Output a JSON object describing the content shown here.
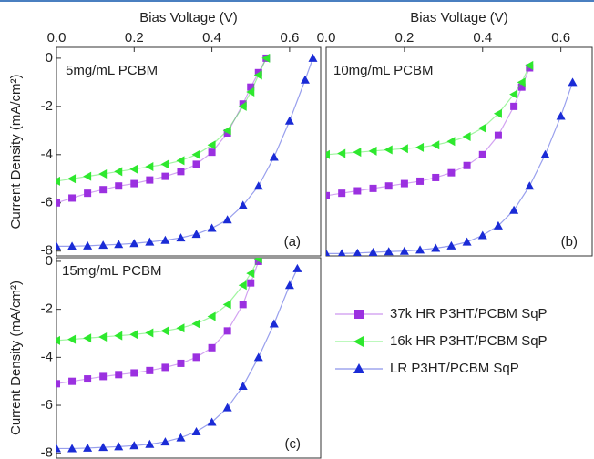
{
  "chart_data": [
    {
      "type": "line",
      "xlabel": "Bias Voltage (V)",
      "ylabel": "Current Density (mA/cm²)",
      "annotations": [
        "5mg/mL PCBM",
        "(a)"
      ],
      "xlim": [
        0,
        0.68
      ],
      "ylim": [
        -8.2,
        0.45
      ],
      "xticks": [
        {
          "value": 0,
          "label": "0.0"
        },
        0.2,
        0.4,
        0.6
      ],
      "yticks": [
        0,
        -2,
        -4,
        -6,
        -8
      ],
      "series": [
        {
          "color": "#9b30e0",
          "marker": "square",
          "x": [
            0,
            0.04,
            0.08,
            0.12,
            0.16,
            0.2,
            0.24,
            0.28,
            0.32,
            0.36,
            0.4,
            0.44,
            0.48,
            0.5,
            0.52,
            0.54
          ],
          "values": [
            -6.0,
            -5.8,
            -5.6,
            -5.45,
            -5.3,
            -5.2,
            -5.05,
            -4.9,
            -4.7,
            -4.4,
            -3.9,
            -3.1,
            -1.9,
            -1.2,
            -0.6,
            0
          ]
        },
        {
          "color": "#2ee82e",
          "marker": "triangle-left",
          "x": [
            0,
            0.04,
            0.08,
            0.12,
            0.16,
            0.2,
            0.24,
            0.28,
            0.32,
            0.36,
            0.4,
            0.44,
            0.48,
            0.5,
            0.52,
            0.54
          ],
          "values": [
            -5.1,
            -5.0,
            -4.9,
            -4.8,
            -4.7,
            -4.6,
            -4.5,
            -4.4,
            -4.25,
            -4.0,
            -3.6,
            -3.0,
            -2.0,
            -1.4,
            -0.7,
            0
          ]
        },
        {
          "color": "#1a2bd6",
          "marker": "triangle-up",
          "x": [
            0,
            0.04,
            0.08,
            0.12,
            0.16,
            0.2,
            0.24,
            0.28,
            0.32,
            0.36,
            0.4,
            0.44,
            0.48,
            0.52,
            0.56,
            0.6,
            0.64,
            0.66
          ],
          "values": [
            -7.8,
            -7.8,
            -7.78,
            -7.75,
            -7.72,
            -7.68,
            -7.62,
            -7.55,
            -7.45,
            -7.3,
            -7.05,
            -6.7,
            -6.1,
            -5.3,
            -4.1,
            -2.6,
            -0.9,
            0
          ]
        }
      ]
    },
    {
      "type": "line",
      "xlabel": "Bias Voltage (V)",
      "annotations": [
        "10mg/mL PCBM",
        "(b)"
      ],
      "xlim": [
        0,
        0.68
      ],
      "ylim": [
        -8.2,
        0.45
      ],
      "xticks": [
        {
          "value": 0,
          "label": "0.0"
        },
        0.2,
        0.4,
        0.6
      ],
      "series": [
        {
          "color": "#9b30e0",
          "marker": "square",
          "x": [
            0,
            0.04,
            0.08,
            0.12,
            0.16,
            0.2,
            0.24,
            0.28,
            0.32,
            0.36,
            0.4,
            0.44,
            0.48,
            0.5,
            0.52
          ],
          "values": [
            -5.7,
            -5.6,
            -5.5,
            -5.4,
            -5.3,
            -5.2,
            -5.1,
            -4.95,
            -4.75,
            -4.45,
            -4.0,
            -3.2,
            -2.0,
            -1.2,
            -0.4
          ]
        },
        {
          "color": "#2ee82e",
          "marker": "triangle-left",
          "x": [
            0,
            0.04,
            0.08,
            0.12,
            0.16,
            0.2,
            0.24,
            0.28,
            0.32,
            0.36,
            0.4,
            0.44,
            0.48,
            0.5,
            0.52
          ],
          "values": [
            -4.0,
            -3.95,
            -3.9,
            -3.85,
            -3.8,
            -3.75,
            -3.7,
            -3.6,
            -3.45,
            -3.25,
            -2.9,
            -2.3,
            -1.5,
            -1.0,
            -0.3
          ]
        },
        {
          "color": "#1a2bd6",
          "marker": "triangle-up",
          "x": [
            0,
            0.04,
            0.08,
            0.12,
            0.16,
            0.2,
            0.24,
            0.28,
            0.32,
            0.36,
            0.4,
            0.44,
            0.48,
            0.52,
            0.56,
            0.6,
            0.63
          ],
          "values": [
            -8.1,
            -8.1,
            -8.08,
            -8.05,
            -8.02,
            -8.0,
            -7.95,
            -7.88,
            -7.78,
            -7.62,
            -7.35,
            -6.95,
            -6.3,
            -5.3,
            -4.0,
            -2.4,
            -1.0
          ]
        }
      ]
    },
    {
      "type": "line",
      "ylabel": "Current Density (mA/cm²)",
      "annotations": [
        "15mg/mL PCBM",
        "(c)"
      ],
      "xlim": [
        0,
        0.68
      ],
      "ylim": [
        -8.2,
        0.15
      ],
      "yticks": [
        0,
        -2,
        -4,
        -6,
        -8
      ],
      "series": [
        {
          "name": "37k HR P3HT/PCBM SqP",
          "color": "#9b30e0",
          "marker": "square",
          "x": [
            0,
            0.04,
            0.08,
            0.12,
            0.16,
            0.2,
            0.24,
            0.28,
            0.32,
            0.36,
            0.4,
            0.44,
            0.48,
            0.5,
            0.52
          ],
          "values": [
            -5.1,
            -5.0,
            -4.9,
            -4.8,
            -4.72,
            -4.65,
            -4.55,
            -4.42,
            -4.25,
            -4.0,
            -3.6,
            -2.9,
            -1.8,
            -0.9,
            0
          ]
        },
        {
          "name": "16k HR P3HT/PCBM SqP",
          "color": "#2ee82e",
          "marker": "triangle-left",
          "x": [
            0,
            0.04,
            0.08,
            0.12,
            0.16,
            0.2,
            0.24,
            0.28,
            0.32,
            0.36,
            0.4,
            0.44,
            0.48,
            0.5,
            0.52
          ],
          "values": [
            -3.3,
            -3.25,
            -3.2,
            -3.15,
            -3.1,
            -3.05,
            -2.98,
            -2.9,
            -2.78,
            -2.6,
            -2.3,
            -1.8,
            -1.0,
            -0.5,
            0.1
          ]
        },
        {
          "name": "LR P3HT/PCBM SqP",
          "color": "#1a2bd6",
          "marker": "triangle-up",
          "x": [
            0,
            0.04,
            0.08,
            0.12,
            0.16,
            0.2,
            0.24,
            0.28,
            0.32,
            0.36,
            0.4,
            0.44,
            0.48,
            0.52,
            0.56,
            0.6,
            0.62
          ],
          "values": [
            -7.8,
            -7.8,
            -7.78,
            -7.75,
            -7.72,
            -7.68,
            -7.62,
            -7.52,
            -7.35,
            -7.1,
            -6.7,
            -6.1,
            -5.2,
            -4.0,
            -2.6,
            -1.0,
            -0.3
          ]
        }
      ]
    }
  ]
}
